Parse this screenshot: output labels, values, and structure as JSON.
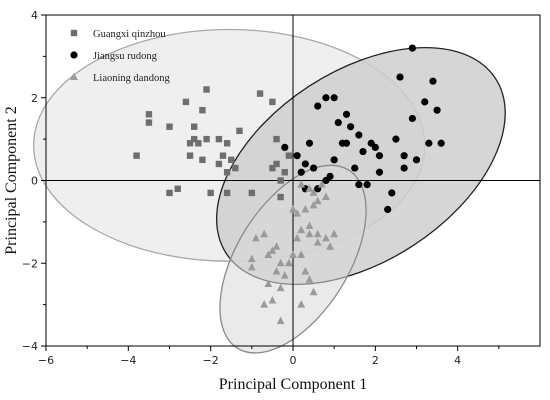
{
  "chart_data": {
    "type": "scatter",
    "xlabel": "Principal Component 1",
    "ylabel": "Principal Component 2",
    "xlim": [
      -6,
      6
    ],
    "ylim": [
      -4,
      4
    ],
    "xticks": [
      -6,
      -4,
      -2,
      0,
      2,
      4
    ],
    "yticks": [
      -4,
      -2,
      0,
      2,
      4
    ],
    "grid": false,
    "legend_placement": "top-left",
    "series": [
      {
        "name": "Guangxi qinzhou",
        "marker": "square",
        "color": "#6e6e6e",
        "ellipse": {
          "cx": -1.55,
          "cy": 0.85,
          "rx": 4.75,
          "ry": 2.8,
          "angle_deg": 0,
          "fill": "#e9e9e9",
          "fill_opacity": 0.75,
          "stroke": "#a8a8a8"
        },
        "points": [
          [
            -3.8,
            0.6
          ],
          [
            -3.5,
            1.6
          ],
          [
            -3.5,
            1.4
          ],
          [
            -3.0,
            1.3
          ],
          [
            -3.0,
            -0.3
          ],
          [
            -2.8,
            -0.2
          ],
          [
            -2.6,
            1.9
          ],
          [
            -2.5,
            0.9
          ],
          [
            -2.5,
            0.6
          ],
          [
            -2.4,
            1.3
          ],
          [
            -2.4,
            1.0
          ],
          [
            -2.3,
            0.9
          ],
          [
            -2.2,
            0.5
          ],
          [
            -2.2,
            1.7
          ],
          [
            -2.1,
            2.2
          ],
          [
            -2.1,
            1.0
          ],
          [
            -2.0,
            -0.3
          ],
          [
            -1.8,
            1.0
          ],
          [
            -1.8,
            0.4
          ],
          [
            -1.7,
            0.6
          ],
          [
            -1.6,
            0.9
          ],
          [
            -1.6,
            0.2
          ],
          [
            -1.6,
            -0.3
          ],
          [
            -1.5,
            0.5
          ],
          [
            -1.4,
            0.3
          ],
          [
            -1.3,
            1.2
          ],
          [
            -1.0,
            -0.3
          ],
          [
            -0.8,
            2.1
          ],
          [
            -0.5,
            1.9
          ],
          [
            -0.4,
            1.0
          ],
          [
            -0.4,
            0.4
          ],
          [
            -0.5,
            0.3
          ],
          [
            -0.3,
            0.0
          ],
          [
            -0.3,
            -0.4
          ],
          [
            -0.2,
            0.2
          ],
          [
            -0.1,
            0.6
          ]
        ]
      },
      {
        "name": "Jiangsu rudong",
        "marker": "circle",
        "color": "#000000",
        "ellipse": {
          "cx": 1.65,
          "cy": 0.35,
          "rx": 3.9,
          "ry": 2.3,
          "angle_deg": -33,
          "fill": "#cfcfcf",
          "fill_opacity": 0.85,
          "stroke": "#222222"
        },
        "points": [
          [
            2.9,
            3.2
          ],
          [
            2.6,
            2.5
          ],
          [
            3.4,
            2.4
          ],
          [
            3.2,
            1.9
          ],
          [
            3.5,
            1.7
          ],
          [
            0.8,
            2.0
          ],
          [
            1.0,
            2.0
          ],
          [
            0.6,
            1.8
          ],
          [
            1.3,
            1.6
          ],
          [
            1.4,
            1.3
          ],
          [
            1.3,
            0.9
          ],
          [
            1.2,
            0.9
          ],
          [
            1.1,
            1.4
          ],
          [
            1.6,
            1.1
          ],
          [
            1.7,
            0.7
          ],
          [
            1.9,
            0.9
          ],
          [
            2.0,
            0.8
          ],
          [
            2.1,
            0.6
          ],
          [
            2.5,
            1.0
          ],
          [
            2.9,
            1.5
          ],
          [
            2.7,
            0.6
          ],
          [
            2.7,
            0.3
          ],
          [
            3.0,
            0.5
          ],
          [
            3.3,
            0.9
          ],
          [
            3.6,
            0.9
          ],
          [
            1.0,
            0.5
          ],
          [
            1.5,
            0.3
          ],
          [
            1.8,
            -0.1
          ],
          [
            2.1,
            0.2
          ],
          [
            2.4,
            -0.3
          ],
          [
            2.3,
            -0.7
          ],
          [
            1.6,
            -0.1
          ],
          [
            0.5,
            0.3
          ],
          [
            0.3,
            0.4
          ],
          [
            0.4,
            0.9
          ],
          [
            0.1,
            0.6
          ],
          [
            0.2,
            0.2
          ],
          [
            0.8,
            0.0
          ],
          [
            0.9,
            0.1
          ],
          [
            -0.2,
            0.8
          ],
          [
            0.6,
            -0.2
          ],
          [
            0.3,
            -0.2
          ]
        ]
      },
      {
        "name": "Liaoning dandong",
        "marker": "triangle",
        "color": "#9a9a9a",
        "ellipse": {
          "cx": 0.0,
          "cy": -1.9,
          "rx": 2.55,
          "ry": 1.35,
          "angle_deg": -58,
          "fill": "#d8d8d8",
          "fill_opacity": 0.55,
          "stroke": "#8a8a8a"
        },
        "points": [
          [
            0.2,
            -0.1
          ],
          [
            0.4,
            -0.2
          ],
          [
            0.5,
            -0.3
          ],
          [
            0.7,
            -0.1
          ],
          [
            0.6,
            -0.5
          ],
          [
            0.8,
            -0.4
          ],
          [
            0.5,
            -0.6
          ],
          [
            0.3,
            -0.7
          ],
          [
            0.1,
            -0.8
          ],
          [
            0.0,
            -0.7
          ],
          [
            0.2,
            -1.2
          ],
          [
            0.4,
            -1.3
          ],
          [
            0.6,
            -1.3
          ],
          [
            0.8,
            -1.4
          ],
          [
            0.6,
            -1.5
          ],
          [
            0.1,
            -1.4
          ],
          [
            0.2,
            -1.8
          ],
          [
            0.3,
            -2.2
          ],
          [
            0.4,
            -2.4
          ],
          [
            0.5,
            -2.7
          ],
          [
            0.0,
            -1.8
          ],
          [
            -0.1,
            -2.0
          ],
          [
            -0.2,
            -2.3
          ],
          [
            -0.3,
            -2.0
          ],
          [
            -0.3,
            -2.6
          ],
          [
            -0.4,
            -1.6
          ],
          [
            -0.4,
            -2.2
          ],
          [
            -0.5,
            -1.7
          ],
          [
            -0.5,
            -2.9
          ],
          [
            -0.6,
            -1.8
          ],
          [
            -0.7,
            -1.3
          ],
          [
            -0.9,
            -1.4
          ],
          [
            -1.0,
            -1.9
          ],
          [
            -1.0,
            -2.1
          ],
          [
            -0.6,
            -2.5
          ],
          [
            -0.7,
            -3.0
          ],
          [
            -0.3,
            -3.4
          ],
          [
            0.2,
            -3.0
          ],
          [
            0.9,
            -1.6
          ],
          [
            1.0,
            -1.3
          ],
          [
            0.4,
            -1.1
          ]
        ]
      }
    ]
  }
}
